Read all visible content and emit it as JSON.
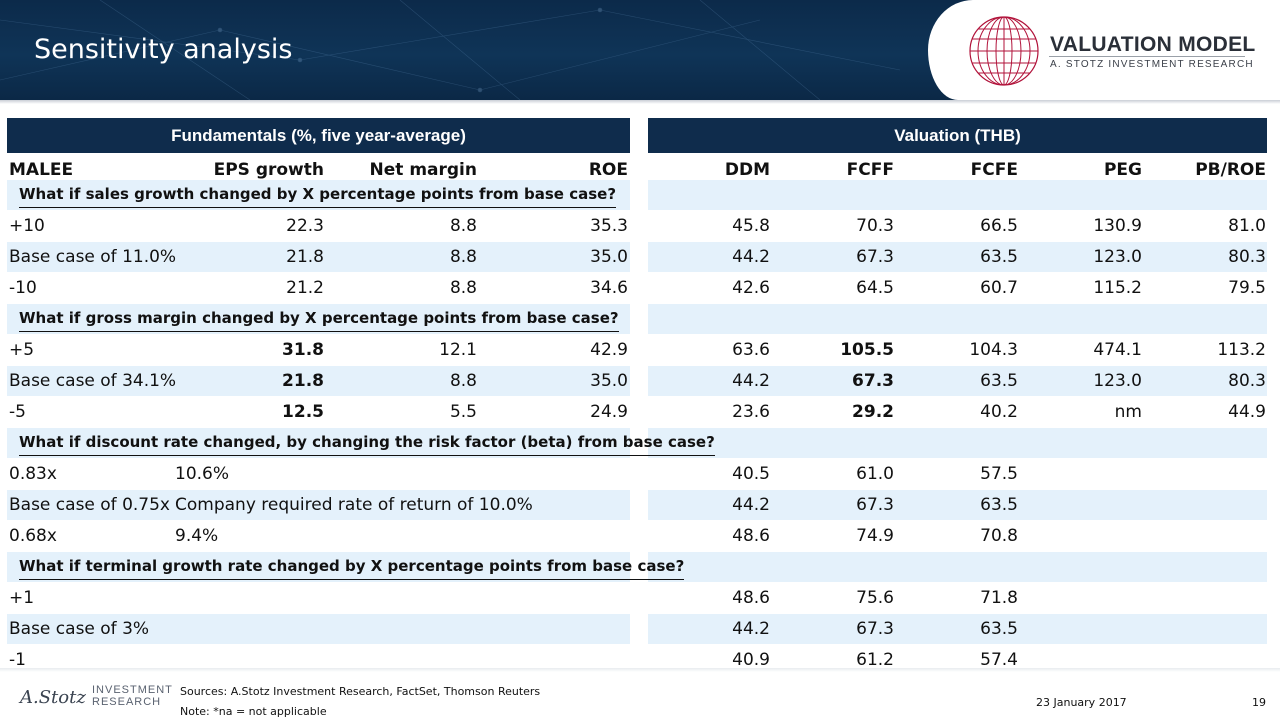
{
  "header": {
    "title": "Sensitivity analysis",
    "logo_title": "VALUATION MODEL",
    "logo_subtitle": "A. STOTZ INVESTMENT RESEARCH"
  },
  "left_band": "Fundamentals (%, five year-average)",
  "right_band": "Valuation  (THB)",
  "columns_left": [
    "MALEE",
    "EPS growth",
    "Net margin",
    "ROE"
  ],
  "columns_right": [
    "DDM",
    "FCFF",
    "FCFE",
    "PEG",
    "PB/ROE"
  ],
  "sections": [
    {
      "question": "What if sales growth changed by X percentage points from base case?",
      "rows": [
        {
          "label": "+10",
          "eps": "22.3",
          "nm": "8.8",
          "roe": "35.3",
          "ddm": "45.8",
          "fcff": "70.3",
          "fcfe": "66.5",
          "peg": "130.9",
          "pbroe": "81.0"
        },
        {
          "label": "Base case of 11.0%",
          "eps": "21.8",
          "nm": "8.8",
          "roe": "35.0",
          "ddm": "44.2",
          "fcff": "67.3",
          "fcfe": "63.5",
          "peg": "123.0",
          "pbroe": "80.3"
        },
        {
          "label": "-10",
          "eps": "21.2",
          "nm": "8.8",
          "roe": "34.6",
          "ddm": "42.6",
          "fcff": "64.5",
          "fcfe": "60.7",
          "peg": "115.2",
          "pbroe": "79.5"
        }
      ]
    },
    {
      "question": "What if gross margin changed by X percentage points from base case?",
      "rows": [
        {
          "label": "+5",
          "eps": "31.8",
          "nm": "12.1",
          "roe": "42.9",
          "ddm": "63.6",
          "fcff": "105.5",
          "fcfe": "104.3",
          "peg": "474.1",
          "pbroe": "113.2"
        },
        {
          "label": "Base case of 34.1%",
          "eps": "21.8",
          "nm": "8.8",
          "roe": "35.0",
          "ddm": "44.2",
          "fcff": "67.3",
          "fcfe": "63.5",
          "peg": "123.0",
          "pbroe": "80.3"
        },
        {
          "label": "-5",
          "eps": "12.5",
          "nm": "5.5",
          "roe": "24.9",
          "ddm": "23.6",
          "fcff": "29.2",
          "fcfe": "40.2",
          "peg": "nm",
          "pbroe": "44.9"
        }
      ]
    },
    {
      "question": "What if discount rate changed, by changing the risk factor (beta) from base case?",
      "rows": [
        {
          "label": "0.83x",
          "note": "10.6%",
          "ddm": "40.5",
          "fcff": "61.0",
          "fcfe": "57.5"
        },
        {
          "label": "Base case of 0.75x",
          "note": "Company required  rate of return  of  10.0%",
          "ddm": "44.2",
          "fcff": "67.3",
          "fcfe": "63.5"
        },
        {
          "label": "0.68x",
          "note": "9.4%",
          "ddm": "48.6",
          "fcff": "74.9",
          "fcfe": "70.8"
        }
      ]
    },
    {
      "question": "What if terminal growth rate changed by X percentage points from base case?",
      "rows": [
        {
          "label": "+1",
          "ddm": "48.6",
          "fcff": "75.6",
          "fcfe": "71.8"
        },
        {
          "label": "Base case of 3%",
          "ddm": "44.2",
          "fcff": "67.3",
          "fcfe": "63.5"
        },
        {
          "label": "-1",
          "ddm": "40.9",
          "fcff": "61.2",
          "fcfe": "57.4"
        }
      ]
    }
  ],
  "footer": {
    "brand_signature": "A.Stotz",
    "brand_line1": "INVESTMENT",
    "brand_line2": "RESEARCH",
    "sources": "Sources: A.Stotz Investment Research, FactSet, Thomson Reuters",
    "note": "Note: *na = not applicable",
    "date": "23 January 2017",
    "page": "19"
  }
}
